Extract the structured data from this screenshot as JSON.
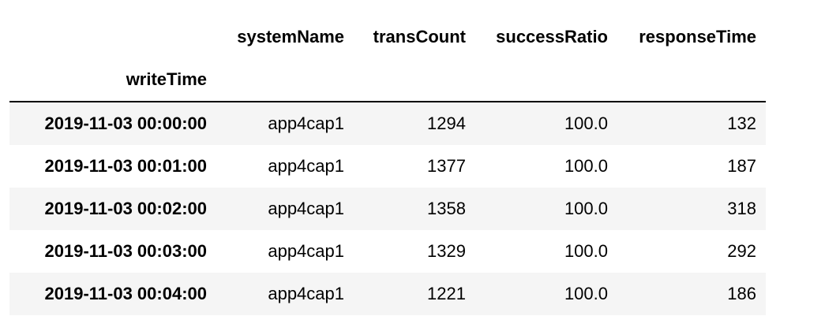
{
  "table": {
    "index_name": "writeTime",
    "columns": [
      "systemName",
      "transCount",
      "successRatio",
      "responseTime"
    ],
    "rows": [
      {
        "index": "2019-11-03 00:00:00",
        "systemName": "app4cap1",
        "transCount": "1294",
        "successRatio": "100.0",
        "responseTime": "132"
      },
      {
        "index": "2019-11-03 00:01:00",
        "systemName": "app4cap1",
        "transCount": "1377",
        "successRatio": "100.0",
        "responseTime": "187"
      },
      {
        "index": "2019-11-03 00:02:00",
        "systemName": "app4cap1",
        "transCount": "1358",
        "successRatio": "100.0",
        "responseTime": "318"
      },
      {
        "index": "2019-11-03 00:03:00",
        "systemName": "app4cap1",
        "transCount": "1329",
        "successRatio": "100.0",
        "responseTime": "292"
      },
      {
        "index": "2019-11-03 00:04:00",
        "systemName": "app4cap1",
        "transCount": "1221",
        "successRatio": "100.0",
        "responseTime": "186"
      }
    ]
  },
  "chart_data": {
    "type": "table",
    "columns": [
      "writeTime",
      "systemName",
      "transCount",
      "successRatio",
      "responseTime"
    ],
    "rows": [
      [
        "2019-11-03 00:00:00",
        "app4cap1",
        1294,
        100.0,
        132
      ],
      [
        "2019-11-03 00:01:00",
        "app4cap1",
        1377,
        100.0,
        187
      ],
      [
        "2019-11-03 00:02:00",
        "app4cap1",
        1358,
        100.0,
        318
      ],
      [
        "2019-11-03 00:03:00",
        "app4cap1",
        1329,
        100.0,
        292
      ],
      [
        "2019-11-03 00:04:00",
        "app4cap1",
        1221,
        100.0,
        186
      ]
    ]
  }
}
